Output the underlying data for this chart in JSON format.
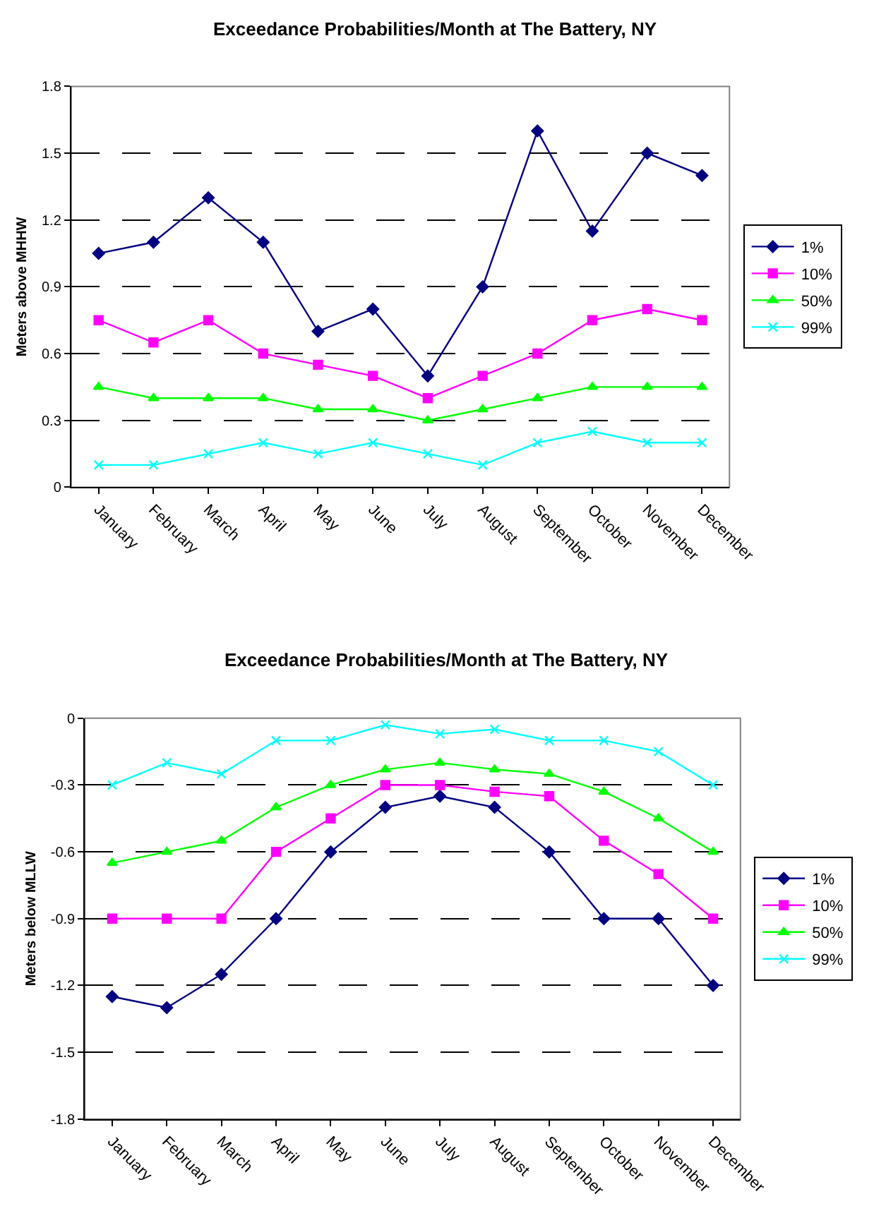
{
  "chart_data": [
    {
      "type": "line",
      "title": "Exceedance Probabilities/Month at The Battery, NY",
      "ylabel": "Meters above MHHW",
      "categories": [
        "January",
        "February",
        "March",
        "April",
        "May",
        "June",
        "July",
        "August",
        "September",
        "October",
        "November",
        "December"
      ],
      "series": [
        {
          "name": "1%",
          "color": "#000080",
          "marker": "diamond",
          "values": [
            1.05,
            1.1,
            1.3,
            1.1,
            0.7,
            0.8,
            0.5,
            0.9,
            1.6,
            1.15,
            1.5,
            1.4
          ]
        },
        {
          "name": "10%",
          "color": "#ff00ff",
          "marker": "square",
          "values": [
            0.75,
            0.65,
            0.75,
            0.6,
            0.55,
            0.5,
            0.4,
            0.5,
            0.6,
            0.75,
            0.8,
            0.75
          ]
        },
        {
          "name": "50%",
          "color": "#00ff00",
          "marker": "triangle",
          "values": [
            0.45,
            0.4,
            0.4,
            0.4,
            0.35,
            0.35,
            0.3,
            0.35,
            0.4,
            0.45,
            0.45,
            0.45
          ]
        },
        {
          "name": "99%",
          "color": "#00ffff",
          "marker": "cross",
          "values": [
            0.1,
            0.1,
            0.15,
            0.2,
            0.15,
            0.2,
            0.15,
            0.1,
            0.2,
            0.25,
            0.2,
            0.2
          ]
        }
      ],
      "ylim": [
        0,
        1.8
      ],
      "yticks": [
        0,
        0.3,
        0.6,
        0.9,
        1.2,
        1.5,
        1.8
      ],
      "grid": "y",
      "legend": "right"
    },
    {
      "type": "line",
      "title": "Exceedance Probabilities/Month at The Battery, NY",
      "ylabel": "Meters below MLLW",
      "categories": [
        "January",
        "February",
        "March",
        "April",
        "May",
        "June",
        "July",
        "August",
        "September",
        "October",
        "November",
        "December"
      ],
      "series": [
        {
          "name": "1%",
          "color": "#000080",
          "marker": "diamond",
          "values": [
            -1.25,
            -1.3,
            -1.15,
            -0.9,
            -0.6,
            -0.4,
            -0.35,
            -0.4,
            -0.6,
            -0.9,
            -0.9,
            -1.2
          ]
        },
        {
          "name": "10%",
          "color": "#ff00ff",
          "marker": "square",
          "values": [
            -0.9,
            -0.9,
            -0.9,
            -0.6,
            -0.45,
            -0.3,
            -0.3,
            -0.33,
            -0.35,
            -0.55,
            -0.7,
            -0.9
          ]
        },
        {
          "name": "50%",
          "color": "#00ff00",
          "marker": "triangle",
          "values": [
            -0.65,
            -0.6,
            -0.55,
            -0.4,
            -0.3,
            -0.23,
            -0.2,
            -0.23,
            -0.25,
            -0.33,
            -0.45,
            -0.6
          ]
        },
        {
          "name": "99%",
          "color": "#00ffff",
          "marker": "cross",
          "values": [
            -0.3,
            -0.2,
            -0.25,
            -0.1,
            -0.1,
            -0.03,
            -0.07,
            -0.05,
            -0.1,
            -0.1,
            -0.15,
            -0.3
          ]
        }
      ],
      "ylim": [
        -1.8,
        0
      ],
      "yticks": [
        -1.8,
        -1.5,
        -1.2,
        -0.9,
        -0.6,
        -0.3,
        0
      ],
      "grid": "y",
      "legend": "right"
    }
  ]
}
